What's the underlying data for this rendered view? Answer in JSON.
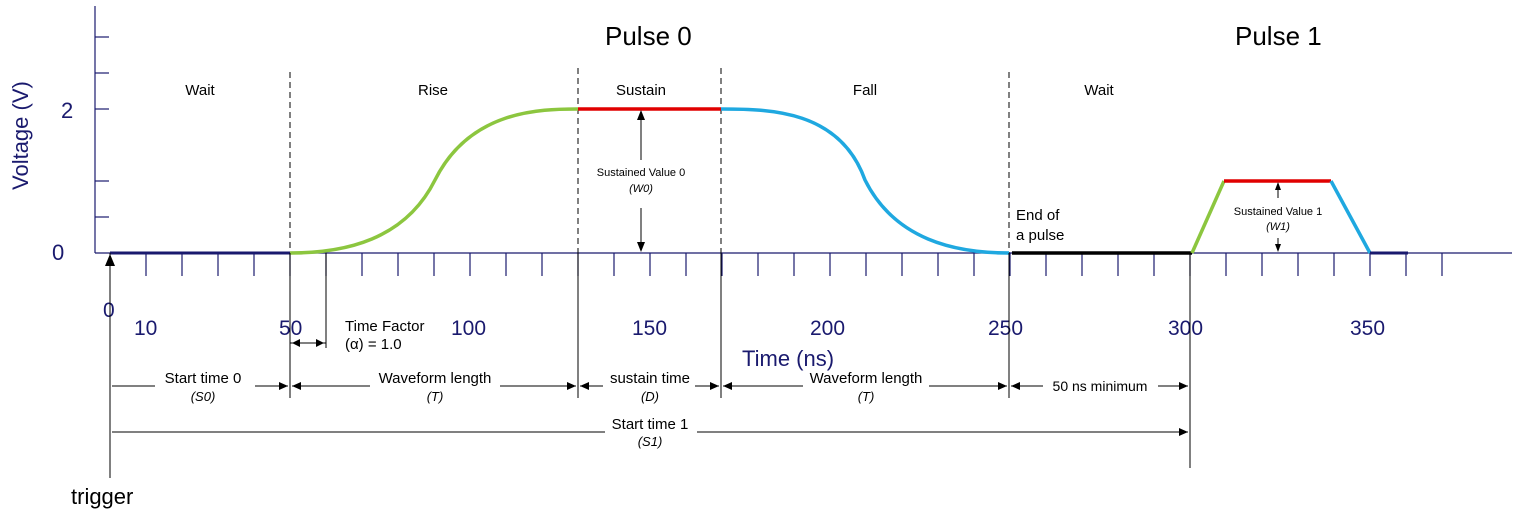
{
  "titles": {
    "pulse0": "Pulse 0",
    "pulse1": "Pulse 1"
  },
  "axes": {
    "ylabel": "Voltage (V)",
    "xlabel": "Time (ns)",
    "y_ticks": [
      "2",
      "0"
    ],
    "x_ticks": [
      "0",
      "10",
      "50",
      "100",
      "150",
      "200",
      "250",
      "300",
      "350"
    ]
  },
  "phases": {
    "wait0": "Wait",
    "rise": "Rise",
    "sustain": "Sustain",
    "fall": "Fall",
    "wait1": "Wait"
  },
  "annotations": {
    "sustained0": "Sustained Value 0",
    "sustained0_sym": "(W0)",
    "sustained1": "Sustained Value 1",
    "sustained1_sym": "(W1)",
    "end_pulse_1": "End of",
    "end_pulse_2": "a pulse",
    "time_factor_1": "Time Factor",
    "time_factor_2": "(α) = 1.0",
    "trigger": "trigger"
  },
  "spans": {
    "start0": "Start time 0",
    "start0_sym": "(S0)",
    "wave1": "Waveform length",
    "wave1_sym": "(T)",
    "sustain": "sustain time",
    "sustain_sym": "(D)",
    "wave2": "Waveform length",
    "wave2_sym": "(T)",
    "minimum": "50 ns minimum",
    "start1": "Start time 1",
    "start1_sym": "(S1)"
  },
  "colors": {
    "axis": "#1a1a6e",
    "rise": "#8cc63f",
    "sustain": "#e00000",
    "fall": "#1fa8e0",
    "wait": "#000000"
  }
}
